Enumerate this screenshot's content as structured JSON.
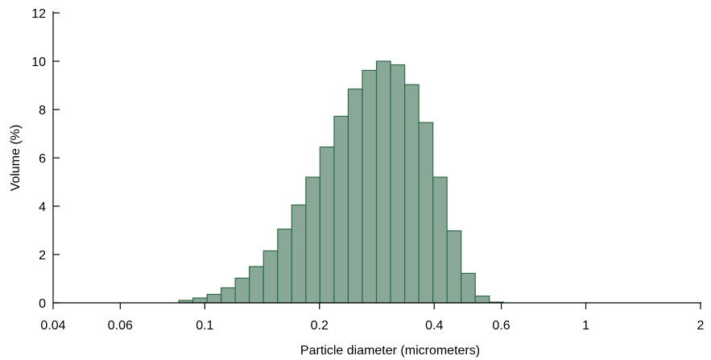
{
  "chart_data": {
    "type": "bar",
    "title": "",
    "xlabel": "Particle diameter (micrometers)",
    "ylabel": "Volume (%)",
    "x_scale": "log",
    "xlim": [
      0.04,
      2.1
    ],
    "ylim": [
      0,
      12
    ],
    "x_ticks": [
      {
        "value": 0.04,
        "label": "0.04"
      },
      {
        "value": 0.06,
        "label": "0.06"
      },
      {
        "value": 0.1,
        "label": "0.1"
      },
      {
        "value": 0.2,
        "label": "0.2"
      },
      {
        "value": 0.4,
        "label": "0.4"
      },
      {
        "value": 0.6,
        "label": "0.6"
      },
      {
        "value": 1,
        "label": "1"
      },
      {
        "value": 2,
        "label": "2"
      }
    ],
    "y_ticks": [
      {
        "value": 0,
        "label": "0"
      },
      {
        "value": 2,
        "label": "2"
      },
      {
        "value": 4,
        "label": "4"
      },
      {
        "value": 6,
        "label": "6"
      },
      {
        "value": 8,
        "label": "8"
      },
      {
        "value": 10,
        "label": "10"
      },
      {
        "value": 12,
        "label": "12"
      }
    ],
    "bin_edges": [
      0.0855,
      0.0931,
      0.1014,
      0.1104,
      0.1202,
      0.1309,
      0.1426,
      0.1553,
      0.1691,
      0.1842,
      0.2006,
      0.2185,
      0.2379,
      0.2591,
      0.2822,
      0.3073,
      0.3347,
      0.3645,
      0.397,
      0.4323,
      0.4708,
      0.5127,
      0.5584,
      0.6081,
      0.6622,
      0.7212
    ],
    "values": [
      0.1,
      0.2,
      0.35,
      0.62,
      1.02,
      1.5,
      2.15,
      3.05,
      4.05,
      5.2,
      6.45,
      7.72,
      8.85,
      9.62,
      10.0,
      9.85,
      9.03,
      7.46,
      5.2,
      2.98,
      1.22,
      0.28,
      0.03,
      0.0,
      0.0
    ],
    "bar_fill": "#8aa898",
    "bar_stroke": "#2b6b45",
    "grid": false,
    "legend": "none"
  }
}
